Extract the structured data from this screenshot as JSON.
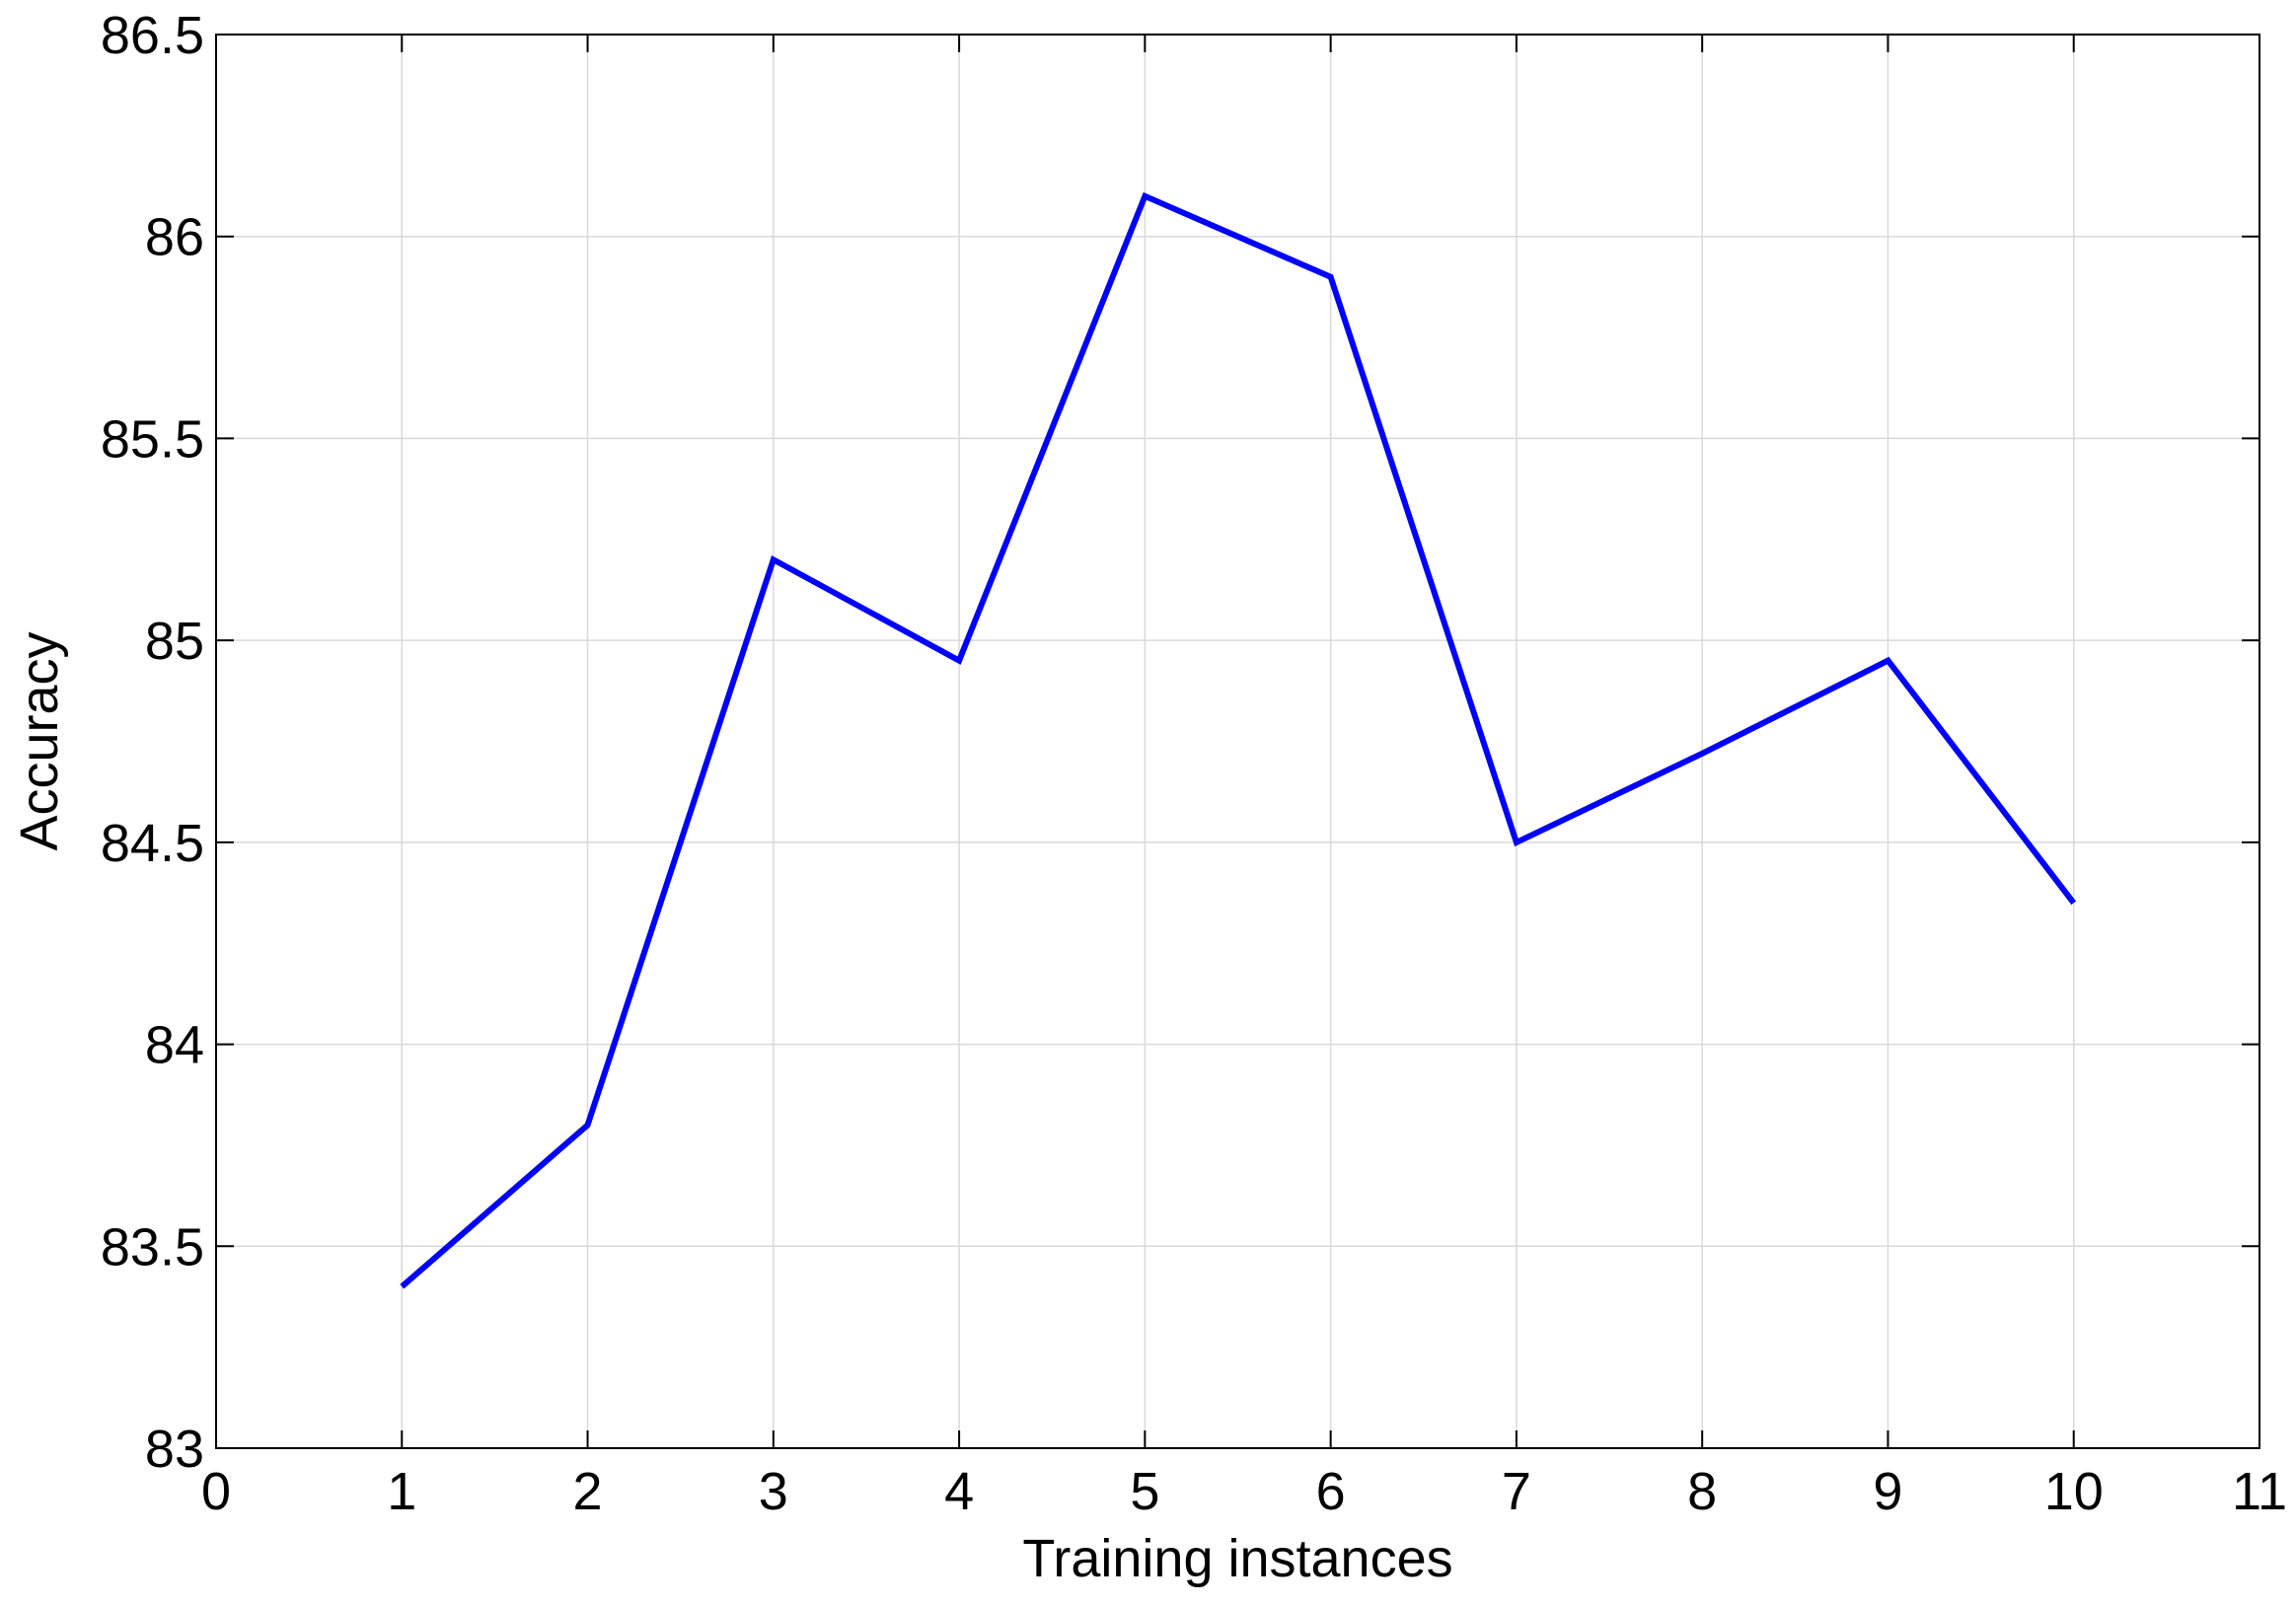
{
  "chart_data": {
    "type": "line",
    "title": "",
    "xlabel": "Training instances",
    "ylabel": "Accuracy",
    "xlim": [
      0,
      11
    ],
    "ylim": [
      83,
      86.5
    ],
    "xticks": [
      0,
      1,
      2,
      3,
      4,
      5,
      6,
      7,
      8,
      9,
      10,
      11
    ],
    "xtick_labels": [
      "0",
      "1",
      "2",
      "3",
      "4",
      "5",
      "6",
      "7",
      "8",
      "9",
      "10",
      "11"
    ],
    "yticks": [
      83,
      83.5,
      84,
      84.5,
      85,
      85.5,
      86,
      86.5
    ],
    "ytick_labels": [
      "83",
      "83.5",
      "84",
      "84.5",
      "85",
      "85.5",
      "86",
      "86.5"
    ],
    "grid": true,
    "legend": "none",
    "series": [
      {
        "color": "#0000ff",
        "x": [
          1,
          2,
          3,
          4,
          5,
          6,
          7,
          8,
          9,
          10
        ],
        "y": [
          83.4,
          83.8,
          85.2,
          84.95,
          86.1,
          85.9,
          84.5,
          84.72,
          84.95,
          84.35
        ]
      }
    ]
  }
}
